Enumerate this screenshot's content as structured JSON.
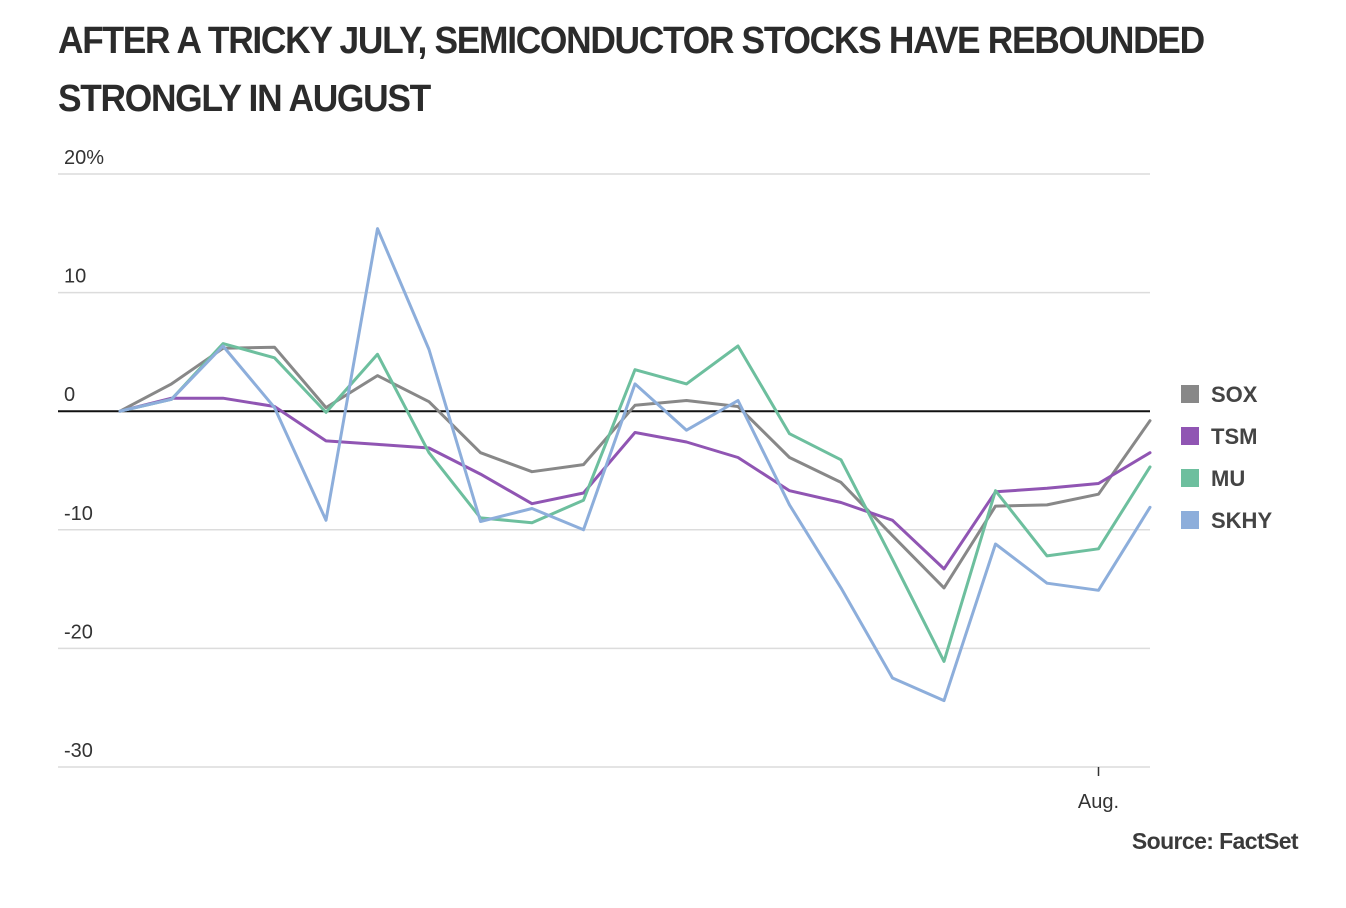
{
  "title": "AFTER A TRICKY JULY, SEMICONDUCTOR STOCKS HAVE REBOUNDED STRONGLY IN AUGUST",
  "source": "Source: FactSet",
  "chart_data": {
    "type": "line",
    "title": "AFTER A TRICKY JULY, SEMICONDUCTOR STOCKS HAVE REBOUNDED STRONGLY IN AUGUST",
    "xlabel": "",
    "ylabel": "",
    "ylim": [
      -30,
      20
    ],
    "yticks": [
      {
        "value": 20,
        "label": "20%"
      },
      {
        "value": 10,
        "label": "10"
      },
      {
        "value": 0,
        "label": "0"
      },
      {
        "value": -10,
        "label": "-10"
      },
      {
        "value": -20,
        "label": "-20"
      },
      {
        "value": -30,
        "label": "-30"
      }
    ],
    "xticks": [
      {
        "index": 19,
        "label": "Aug."
      }
    ],
    "x": [
      0,
      1,
      2,
      3,
      4,
      5,
      6,
      7,
      8,
      9,
      10,
      11,
      12,
      13,
      14,
      15,
      16,
      17,
      18,
      19,
      20
    ],
    "grid": true,
    "zero_line": true,
    "legend_position": "right",
    "series": [
      {
        "name": "SOX",
        "color": "#888888",
        "values": [
          0,
          2.3,
          5.3,
          5.4,
          0.3,
          3.0,
          0.8,
          -3.5,
          -5.1,
          -4.5,
          0.5,
          0.9,
          0.4,
          -3.9,
          -6.0,
          -10.5,
          -14.9,
          -8.0,
          -7.9,
          -7.0,
          -0.8
        ]
      },
      {
        "name": "TSM",
        "color": "#9055b3",
        "values": [
          0,
          1.1,
          1.1,
          0.4,
          -2.5,
          -2.8,
          -3.1,
          -5.3,
          -7.8,
          -6.9,
          -1.8,
          -2.6,
          -3.9,
          -6.7,
          -7.7,
          -9.2,
          -13.3,
          -6.8,
          -6.5,
          -6.1,
          -3.5
        ]
      },
      {
        "name": "MU",
        "color": "#6dbf9e",
        "values": [
          0,
          1.0,
          5.7,
          4.5,
          -0.1,
          4.8,
          -3.5,
          -9.0,
          -9.4,
          -7.5,
          3.5,
          2.3,
          5.5,
          -1.9,
          -4.1,
          -12.5,
          -21.1,
          -6.7,
          -12.2,
          -11.6,
          -4.7
        ]
      },
      {
        "name": "SKHY",
        "color": "#8daedb",
        "values": [
          0,
          1.0,
          5.5,
          0.3,
          -9.2,
          15.4,
          5.2,
          -9.3,
          -8.2,
          -10.0,
          2.3,
          -1.6,
          0.9,
          -7.9,
          -14.9,
          -22.5,
          -24.4,
          -11.2,
          -14.5,
          -15.1,
          -8.1
        ]
      }
    ]
  }
}
